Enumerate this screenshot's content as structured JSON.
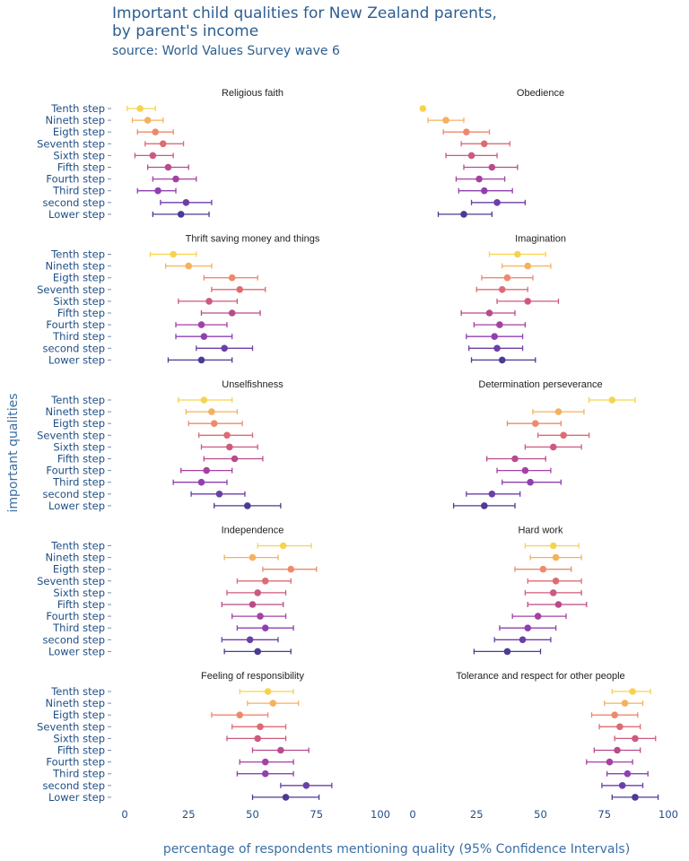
{
  "chart_data": {
    "type": "scatter",
    "title": "Important child qualities for New Zealand parents,\nby parent's income",
    "subtitle": "source: World Values Survey wave 6",
    "xlabel": "percentage of respondents mentioning quality (95% Confidence Intervals)",
    "ylabel": "important qualities",
    "xlim": [
      0,
      100
    ],
    "xticks": [
      0,
      25,
      50,
      75,
      100
    ],
    "categories": [
      "Tenth step",
      "Nineth step",
      "Eigth step",
      "Seventh step",
      "Sixth step",
      "Fifth step",
      "Fourth step",
      "Third step",
      "second step",
      "Lower step"
    ],
    "colors": [
      "#f6d34e",
      "#f5b15e",
      "#ee8a6b",
      "#de6b74",
      "#cd5a7e",
      "#b94b8b",
      "#a441a3",
      "#8e40b0",
      "#6b3fa8",
      "#4c3a93"
    ],
    "panels": [
      {
        "name": "Religious faith",
        "values": [
          6,
          9,
          12,
          15,
          11,
          17,
          20,
          13,
          24,
          22
        ],
        "lower": [
          1,
          3,
          5,
          8,
          4,
          9,
          11,
          5,
          14,
          11
        ],
        "upper": [
          12,
          15,
          19,
          23,
          19,
          25,
          28,
          20,
          34,
          33
        ]
      },
      {
        "name": "Obedience",
        "values": [
          4,
          13,
          21,
          28,
          23,
          31,
          26,
          28,
          33,
          20
        ],
        "lower": [
          4,
          6,
          12,
          19,
          13,
          20,
          17,
          18,
          23,
          10
        ],
        "upper": [
          4,
          20,
          30,
          38,
          33,
          41,
          36,
          39,
          44,
          31
        ]
      },
      {
        "name": "Thrift saving money and things",
        "values": [
          19,
          25,
          42,
          45,
          33,
          42,
          30,
          31,
          39,
          30
        ],
        "lower": [
          10,
          16,
          31,
          34,
          21,
          30,
          20,
          20,
          28,
          17
        ],
        "upper": [
          28,
          34,
          52,
          55,
          44,
          53,
          40,
          42,
          50,
          42
        ]
      },
      {
        "name": "Imagination",
        "values": [
          41,
          45,
          37,
          35,
          45,
          30,
          34,
          32,
          33,
          35
        ],
        "lower": [
          30,
          35,
          27,
          25,
          33,
          19,
          24,
          21,
          22,
          23
        ],
        "upper": [
          52,
          54,
          47,
          45,
          57,
          40,
          44,
          43,
          43,
          48
        ]
      },
      {
        "name": "Unselfishness",
        "values": [
          31,
          34,
          35,
          40,
          41,
          43,
          32,
          30,
          37,
          48
        ],
        "lower": [
          21,
          24,
          25,
          29,
          30,
          31,
          22,
          19,
          26,
          35
        ],
        "upper": [
          42,
          44,
          46,
          50,
          52,
          54,
          42,
          40,
          47,
          61
        ]
      },
      {
        "name": "Determination perseverance",
        "values": [
          78,
          57,
          48,
          59,
          55,
          40,
          44,
          46,
          31,
          28
        ],
        "lower": [
          69,
          47,
          37,
          49,
          44,
          29,
          33,
          35,
          21,
          16
        ],
        "upper": [
          87,
          67,
          58,
          69,
          66,
          52,
          54,
          58,
          42,
          40
        ]
      },
      {
        "name": "Independence",
        "values": [
          62,
          50,
          65,
          55,
          52,
          50,
          53,
          55,
          49,
          52
        ],
        "lower": [
          52,
          39,
          54,
          44,
          40,
          38,
          42,
          44,
          38,
          39
        ],
        "upper": [
          73,
          60,
          75,
          65,
          63,
          62,
          63,
          66,
          60,
          65
        ]
      },
      {
        "name": "Hard work",
        "values": [
          55,
          56,
          51,
          56,
          55,
          57,
          49,
          45,
          43,
          37
        ],
        "lower": [
          44,
          46,
          40,
          45,
          44,
          45,
          39,
          34,
          32,
          24
        ],
        "upper": [
          65,
          66,
          62,
          66,
          66,
          68,
          60,
          56,
          54,
          50
        ]
      },
      {
        "name": "Feeling of responsibility",
        "values": [
          56,
          58,
          45,
          53,
          52,
          61,
          55,
          55,
          71,
          63
        ],
        "lower": [
          45,
          48,
          34,
          42,
          40,
          50,
          45,
          44,
          61,
          50
        ],
        "upper": [
          66,
          68,
          56,
          63,
          63,
          72,
          66,
          66,
          81,
          76
        ]
      },
      {
        "name": "Tolerance and respect for other people",
        "values": [
          86,
          83,
          79,
          81,
          87,
          80,
          77,
          84,
          82,
          87
        ],
        "lower": [
          78,
          75,
          70,
          73,
          79,
          71,
          68,
          76,
          74,
          78
        ],
        "upper": [
          93,
          90,
          88,
          89,
          95,
          89,
          86,
          92,
          90,
          96
        ]
      }
    ]
  }
}
